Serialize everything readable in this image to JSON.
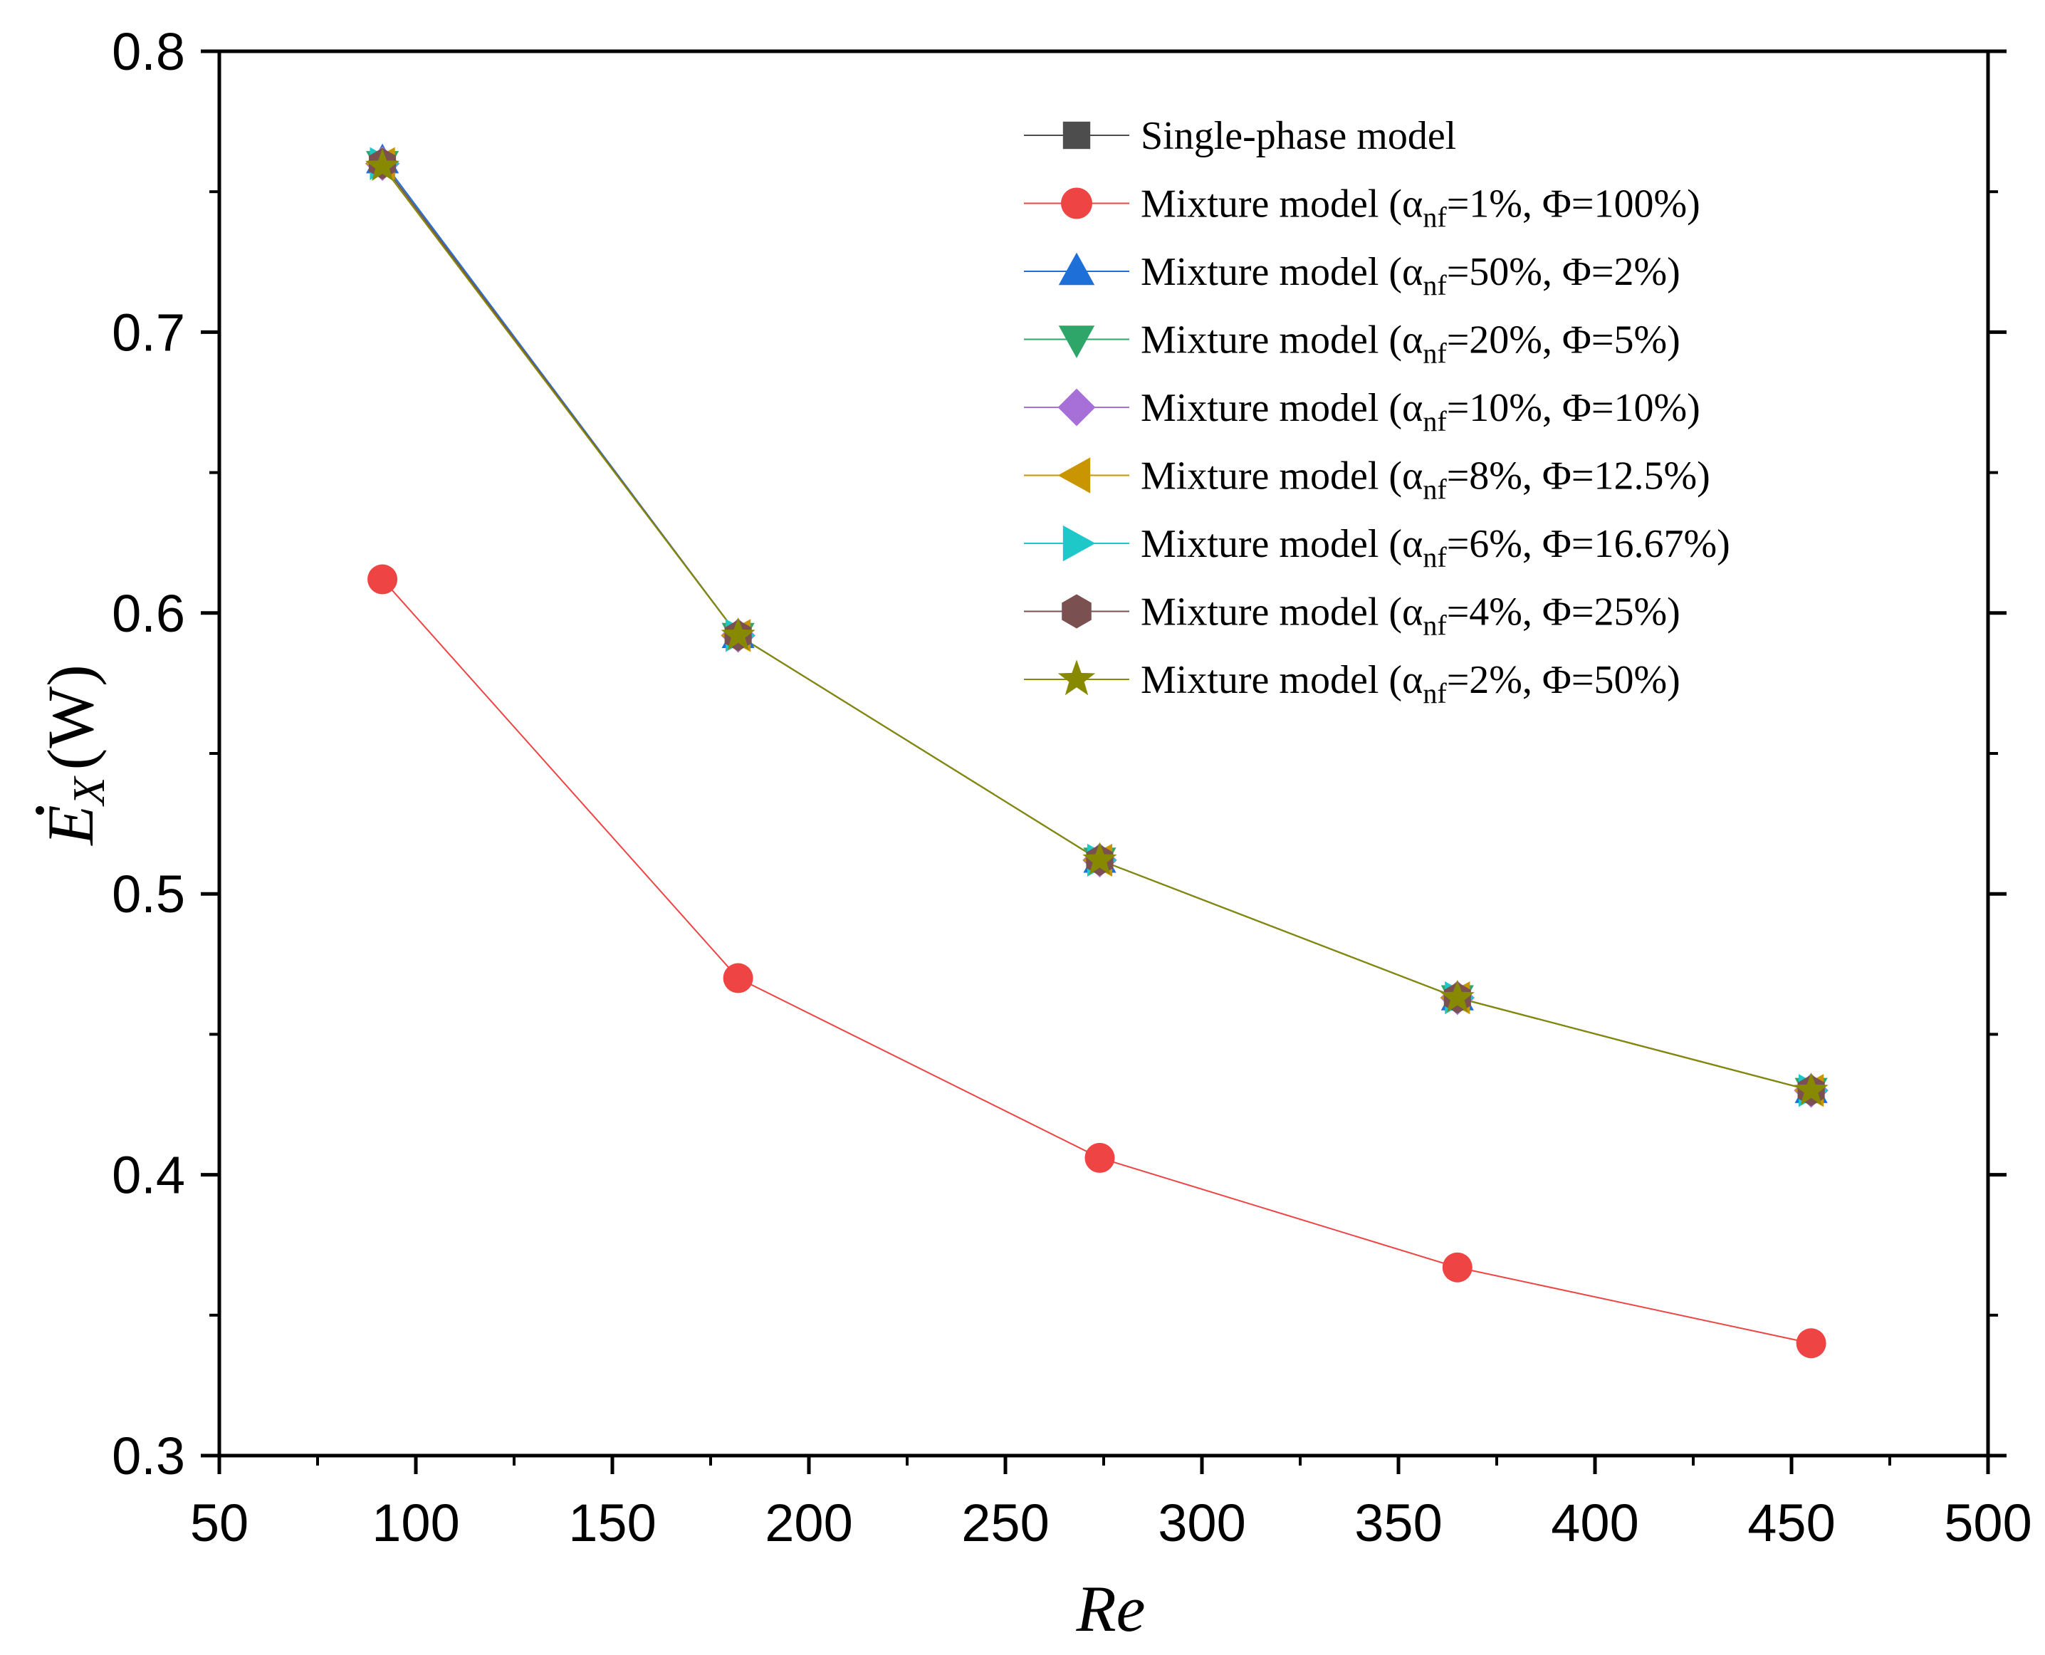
{
  "chart_data": {
    "type": "line",
    "title": "",
    "xlabel": "Re",
    "ylabel": {
      "symbol": "E",
      "subscript": "X",
      "unit": "(W)"
    },
    "xlim": [
      50,
      500
    ],
    "ylim": [
      0.3,
      0.8
    ],
    "xticks": [
      "50",
      "100",
      "150",
      "200",
      "250",
      "300",
      "350",
      "400",
      "450",
      "500"
    ],
    "yticks": [
      "0.3",
      "0.4",
      "0.5",
      "0.6",
      "0.7",
      "0.8"
    ],
    "grid": false,
    "legend_position": "top-right",
    "x": [
      91.5,
      182,
      274,
      365,
      455
    ],
    "series": [
      {
        "name": "Single-phase model",
        "prefix": "Single-phase model",
        "alpha": "",
        "phi": "",
        "marker": "square",
        "color": "#4d4d4d",
        "values": [
          0.76,
          0.592,
          0.512,
          0.463,
          0.43
        ]
      },
      {
        "name": "Mixture model (αnf=1%, Φ=100%)",
        "prefix": "Mixture model (α",
        "alpha": "=1%, Φ=100%)",
        "marker": "circle",
        "color": "#ee4444",
        "values": [
          0.612,
          0.47,
          0.406,
          0.367,
          0.34
        ]
      },
      {
        "name": "Mixture model (αnf=50%, Φ=2%)",
        "prefix": "Mixture model (α",
        "alpha": "=50%, Φ=2%)",
        "marker": "triangle-up",
        "color": "#1f6fd8",
        "values": [
          0.761,
          0.592,
          0.512,
          0.463,
          0.43
        ]
      },
      {
        "name": "Mixture model (αnf=20%, Φ=5%)",
        "prefix": "Mixture model (α",
        "alpha": "=20%, Φ=5%)",
        "marker": "triangle-down",
        "color": "#2ea66a",
        "values": [
          0.76,
          0.592,
          0.512,
          0.463,
          0.43
        ]
      },
      {
        "name": "Mixture model (αnf=10%, Φ=10%)",
        "prefix": "Mixture model (α",
        "alpha": "=10%, Φ=10%)",
        "marker": "diamond",
        "color": "#a76fd8",
        "values": [
          0.76,
          0.592,
          0.512,
          0.463,
          0.43
        ]
      },
      {
        "name": "Mixture model (αnf=8%, Φ=12.5%)",
        "prefix": "Mixture model (α",
        "alpha": "=8%, Φ=12.5%)",
        "marker": "triangle-left",
        "color": "#c99500",
        "values": [
          0.76,
          0.592,
          0.512,
          0.463,
          0.43
        ]
      },
      {
        "name": "Mixture model (αnf=6%, Φ=16.67%)",
        "prefix": "Mixture model (α",
        "alpha": "=6%, Φ=16.67%)",
        "marker": "triangle-right",
        "color": "#1ec8c8",
        "values": [
          0.76,
          0.592,
          0.512,
          0.463,
          0.43
        ]
      },
      {
        "name": "Mixture model (αnf=4%, Φ=25%)",
        "prefix": "Mixture model (α",
        "alpha": "=4%, Φ=25%)",
        "marker": "hexagon",
        "color": "#7a5050",
        "values": [
          0.76,
          0.592,
          0.512,
          0.463,
          0.43
        ]
      },
      {
        "name": "Mixture model (αnf=2%, Φ=50%)",
        "prefix": "Mixture model (α",
        "alpha": "=2%, Φ=50%)",
        "marker": "star",
        "color": "#878a00",
        "values": [
          0.759,
          0.592,
          0.512,
          0.463,
          0.43
        ]
      }
    ],
    "subscript_text": "nf"
  }
}
